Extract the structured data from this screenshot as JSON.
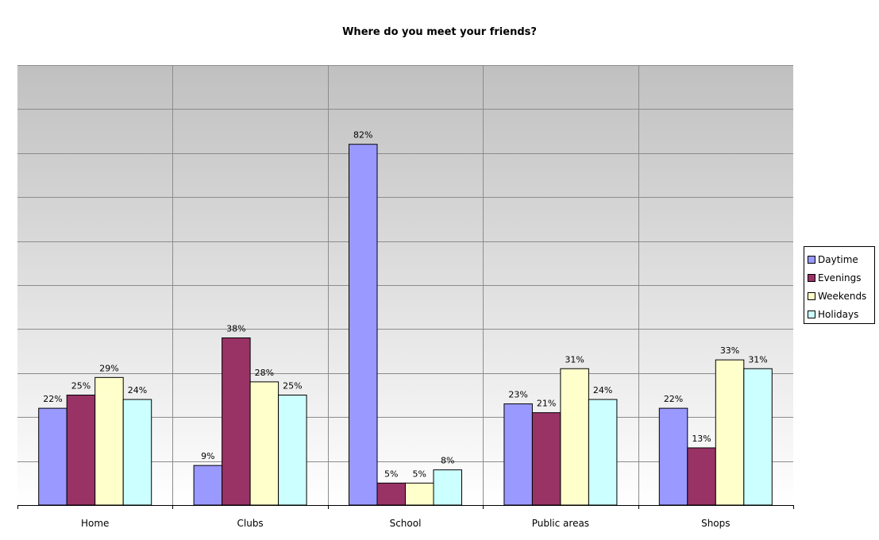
{
  "chart_data": {
    "type": "bar",
    "title": "Where do you meet your friends?",
    "xlabel": "",
    "ylabel": "",
    "categories": [
      "Home",
      "Clubs",
      "School",
      "Public areas",
      "Shops"
    ],
    "series": [
      {
        "name": "Daytime",
        "color": "#9999ff",
        "values": [
          22,
          9,
          82,
          23,
          22
        ],
        "labels": [
          "22%",
          "9%",
          "82%",
          "23%",
          "22%"
        ]
      },
      {
        "name": "Evenings",
        "color": "#993366",
        "values": [
          25,
          38,
          5,
          21,
          13
        ],
        "labels": [
          "25%",
          "38%",
          "5%",
          "21%",
          "13%"
        ]
      },
      {
        "name": "Weekends",
        "color": "#ffffcc",
        "values": [
          29,
          28,
          5,
          31,
          33
        ],
        "labels": [
          "29%",
          "28%",
          "5%",
          "31%",
          "33%"
        ]
      },
      {
        "name": "Holidays",
        "color": "#ccffff",
        "values": [
          24,
          25,
          8,
          24,
          31
        ],
        "labels": [
          "24%",
          "25%",
          "8%",
          "24%",
          "31%"
        ]
      }
    ],
    "ylim": [
      0,
      100
    ],
    "y_gridline_step": 10,
    "grid": true,
    "legend_position": "right",
    "plot_background": "gradient gray to white"
  }
}
